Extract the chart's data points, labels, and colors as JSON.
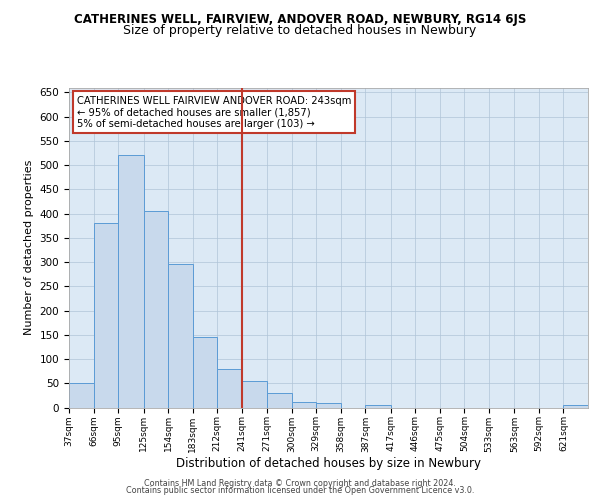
{
  "title": "CATHERINES WELL, FAIRVIEW, ANDOVER ROAD, NEWBURY, RG14 6JS",
  "subtitle": "Size of property relative to detached houses in Newbury",
  "xlabel": "Distribution of detached houses by size in Newbury",
  "ylabel": "Number of detached properties",
  "bin_labels": [
    "37sqm",
    "66sqm",
    "95sqm",
    "125sqm",
    "154sqm",
    "183sqm",
    "212sqm",
    "241sqm",
    "271sqm",
    "300sqm",
    "329sqm",
    "358sqm",
    "387sqm",
    "417sqm",
    "446sqm",
    "475sqm",
    "504sqm",
    "533sqm",
    "563sqm",
    "592sqm",
    "621sqm"
  ],
  "bin_edges": [
    37,
    66,
    95,
    125,
    154,
    183,
    212,
    241,
    271,
    300,
    329,
    358,
    387,
    417,
    446,
    475,
    504,
    533,
    563,
    592,
    621
  ],
  "bar_heights": [
    50,
    380,
    520,
    405,
    295,
    145,
    80,
    55,
    30,
    12,
    10,
    0,
    5,
    0,
    0,
    0,
    0,
    0,
    0,
    0,
    5
  ],
  "bar_color": "#c8d9ec",
  "bar_edge_color": "#5b9bd5",
  "vline_x": 241,
  "vline_color": "#c0392b",
  "ylim": [
    0,
    660
  ],
  "yticks": [
    0,
    50,
    100,
    150,
    200,
    250,
    300,
    350,
    400,
    450,
    500,
    550,
    600,
    650
  ],
  "annotation_line1": "CATHERINES WELL FAIRVIEW ANDOVER ROAD: 243sqm",
  "annotation_line2": "← 95% of detached houses are smaller (1,857)",
  "annotation_line3": "5% of semi-detached houses are larger (103) →",
  "annotation_box_color": "#ffffff",
  "annotation_box_edge": "#c0392b",
  "footer_line1": "Contains HM Land Registry data © Crown copyright and database right 2024.",
  "footer_line2": "Contains public sector information licensed under the Open Government Licence v3.0.",
  "plot_bg_color": "#dce9f5",
  "title_fontsize": 8.5,
  "subtitle_fontsize": 9
}
